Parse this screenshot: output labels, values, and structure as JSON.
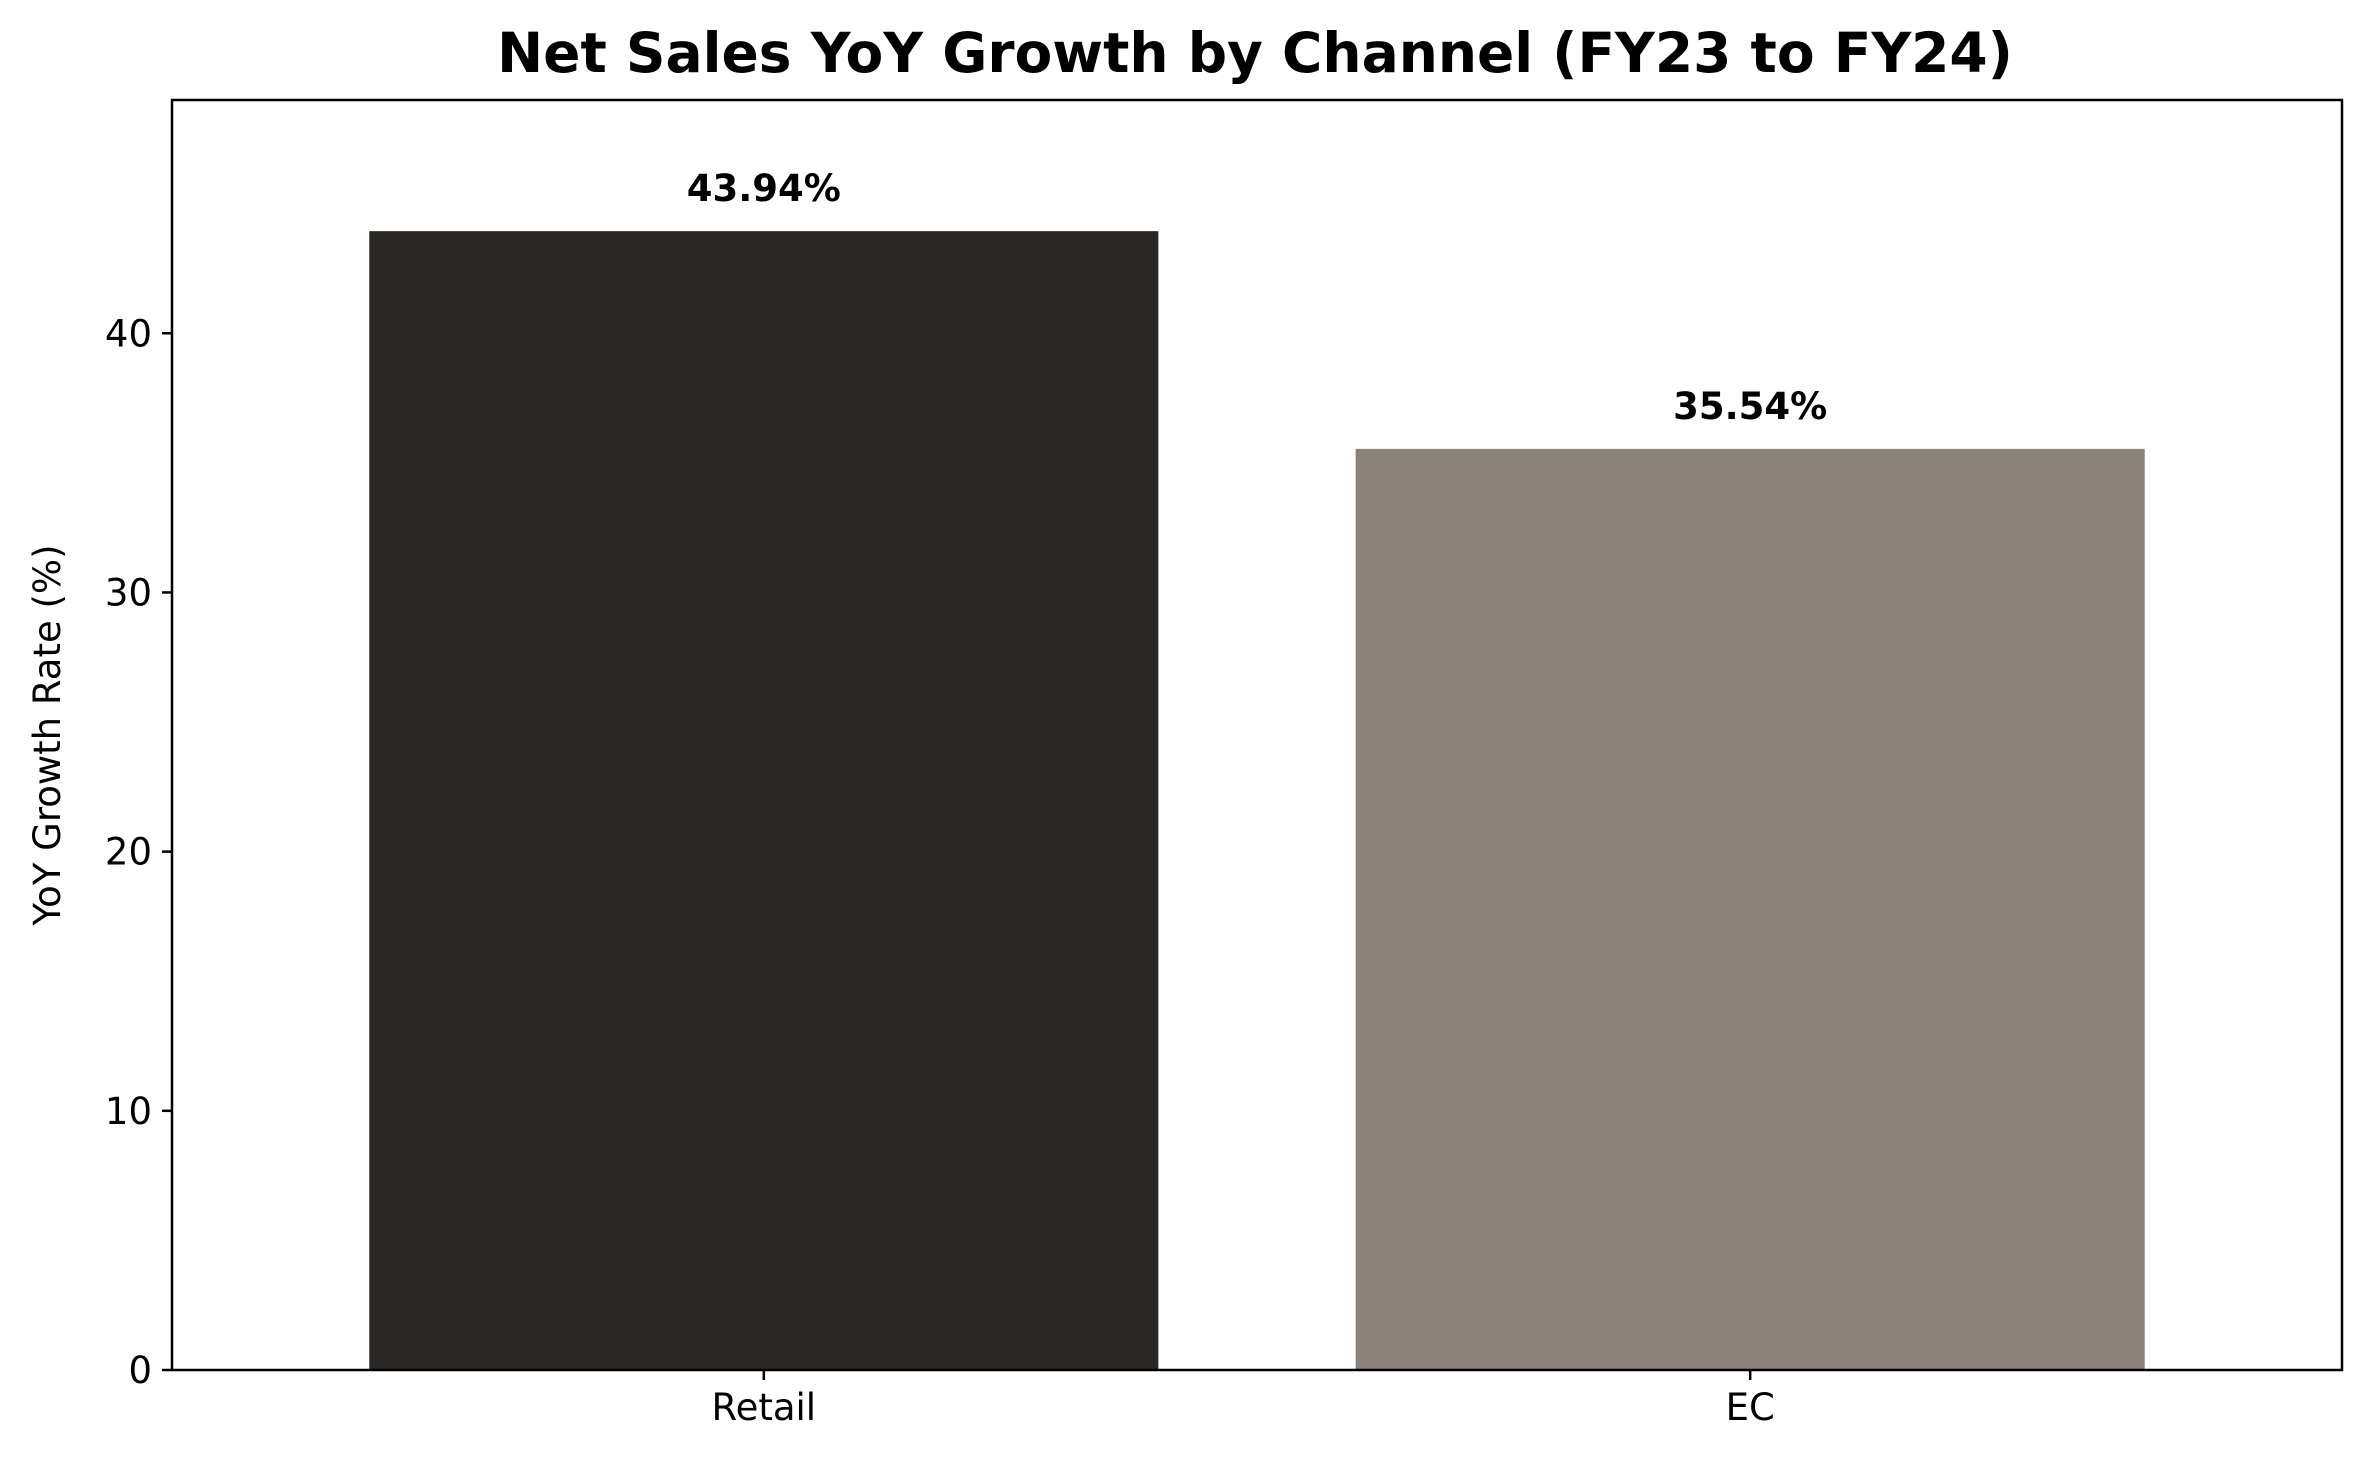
{
  "chart_data": {
    "type": "bar",
    "title": "Net Sales YoY Growth by Channel (FY23 to FY24)",
    "xlabel": "",
    "ylabel": "YoY Growth Rate (%)",
    "categories": [
      "Retail",
      "EC"
    ],
    "values": [
      43.94,
      35.54
    ],
    "data_labels": [
      "43.94%",
      "35.54%"
    ],
    "colors": [
      "#2c2828",
      "#8b8279"
    ],
    "ylim": [
      0,
      49
    ],
    "yticks": [
      0,
      10,
      20,
      30,
      40
    ],
    "ytick_labels": [
      "0",
      "10",
      "20",
      "30",
      "40"
    ],
    "grid": false,
    "legend": "none"
  }
}
